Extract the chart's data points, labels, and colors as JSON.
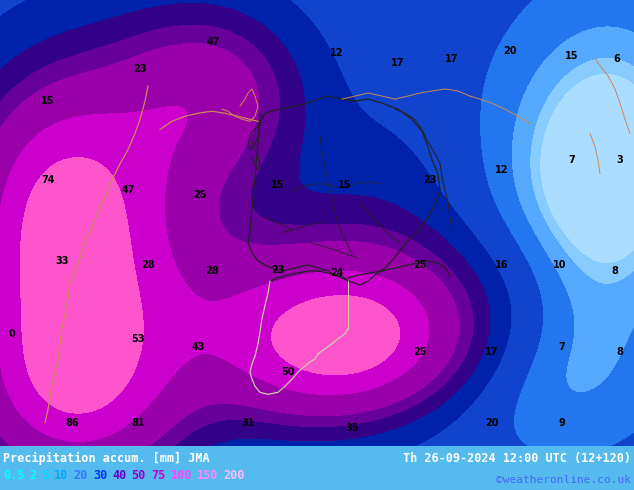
{
  "title_left": "Precipitation accum. [mm] JMA",
  "title_right": "Th 26-09-2024 12:00 UTC (12+120)",
  "credit": "©weatheronline.co.uk",
  "legend_values": [
    "0.5",
    "2",
    "5",
    "10",
    "20",
    "30",
    "40",
    "50",
    "75",
    "100",
    "150",
    "200"
  ],
  "legend_text_colors": [
    "#00ffff",
    "#00ffff",
    "#00ddff",
    "#00aaff",
    "#3377ff",
    "#0033ff",
    "#6600cc",
    "#9900cc",
    "#cc00cc",
    "#ff44ff",
    "#ff88ff",
    "#ffbbff"
  ],
  "background_color": "#55bbee",
  "colormap_colors": [
    "#aaddff",
    "#88ccff",
    "#55aaff",
    "#2277ee",
    "#1144cc",
    "#0022aa",
    "#330088",
    "#660099",
    "#9900aa",
    "#cc00cc",
    "#ff55cc",
    "#ff99dd"
  ],
  "colormap_levels": [
    0,
    0.5,
    2,
    5,
    10,
    20,
    30,
    40,
    50,
    75,
    100,
    150,
    200
  ],
  "figsize": [
    6.34,
    4.9
  ],
  "dpi": 100,
  "label_data": [
    [
      48,
      100,
      "15"
    ],
    [
      140,
      68,
      "23"
    ],
    [
      213,
      42,
      "47"
    ],
    [
      337,
      52,
      "12"
    ],
    [
      398,
      62,
      "17"
    ],
    [
      452,
      58,
      "17"
    ],
    [
      510,
      50,
      "20"
    ],
    [
      572,
      55,
      "15"
    ],
    [
      617,
      58,
      "6"
    ],
    [
      48,
      178,
      "74"
    ],
    [
      128,
      188,
      "47"
    ],
    [
      200,
      193,
      "25"
    ],
    [
      278,
      183,
      "15"
    ],
    [
      345,
      183,
      "15"
    ],
    [
      430,
      178,
      "23"
    ],
    [
      502,
      168,
      "12"
    ],
    [
      572,
      158,
      "7"
    ],
    [
      620,
      158,
      "3"
    ],
    [
      62,
      258,
      "33"
    ],
    [
      148,
      262,
      "28"
    ],
    [
      212,
      268,
      "28"
    ],
    [
      278,
      267,
      "23"
    ],
    [
      337,
      270,
      "24"
    ],
    [
      420,
      262,
      "25"
    ],
    [
      502,
      262,
      "16"
    ],
    [
      560,
      262,
      "10"
    ],
    [
      615,
      268,
      "8"
    ],
    [
      12,
      330,
      "0"
    ],
    [
      138,
      335,
      "53"
    ],
    [
      198,
      343,
      "43"
    ],
    [
      288,
      368,
      "50"
    ],
    [
      420,
      348,
      "25"
    ],
    [
      492,
      348,
      "17"
    ],
    [
      562,
      343,
      "7"
    ],
    [
      620,
      348,
      "8"
    ],
    [
      72,
      418,
      "86"
    ],
    [
      138,
      418,
      "81"
    ],
    [
      248,
      418,
      "31"
    ],
    [
      352,
      423,
      "35"
    ],
    [
      492,
      418,
      "20"
    ],
    [
      562,
      418,
      "9"
    ]
  ],
  "border_color_dark": "#222222",
  "border_color_light": "#ccccaa",
  "border_color_coast": "#cc8855"
}
